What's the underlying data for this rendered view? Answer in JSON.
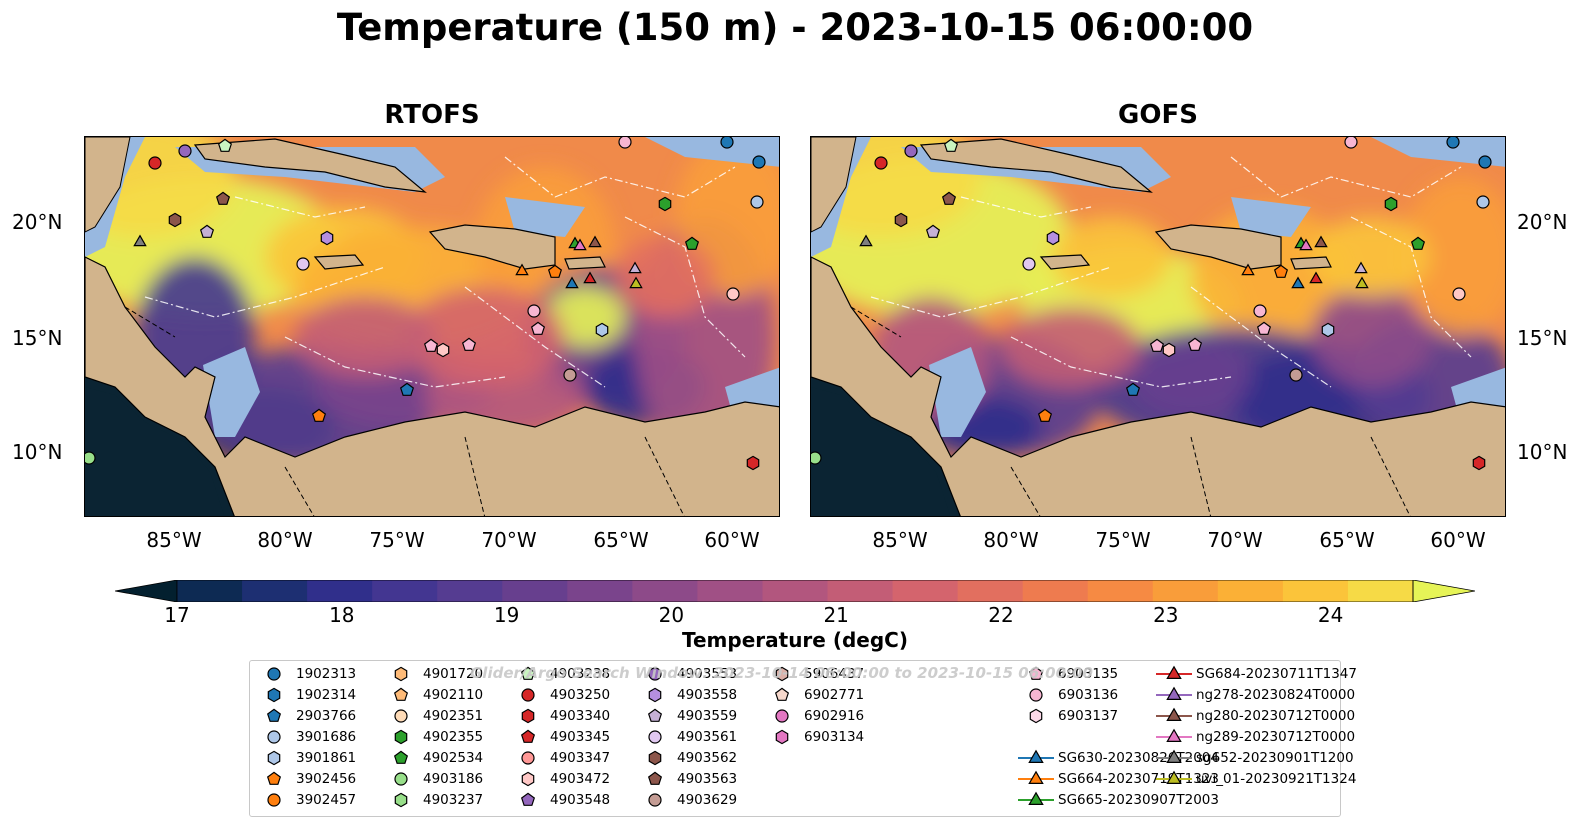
{
  "title": "Temperature (150 m) - 2023-10-15 06:00:00",
  "panels": [
    {
      "title": "RTOFS",
      "variant": "rtofs"
    },
    {
      "title": "GOFS",
      "variant": "gofs"
    }
  ],
  "lat_ticks": [
    "20°N",
    "15°N",
    "10°N"
  ],
  "lon_ticks": [
    "85°W",
    "80°W",
    "75°W",
    "70°W",
    "65°W",
    "60°W"
  ],
  "colorbar": {
    "label": "Temperature (degC)",
    "min": 17,
    "max": 24.5,
    "step": 0.5,
    "tick_labels": [
      "17",
      "18",
      "19",
      "20",
      "21",
      "22",
      "23",
      "24"
    ],
    "colors": [
      "#03202f",
      "#0d2a53",
      "#1d2f72",
      "#302f8b",
      "#433691",
      "#553c91",
      "#673f8e",
      "#7a448c",
      "#8d4a89",
      "#a05085",
      "#b2567e",
      "#c35d76",
      "#d4646d",
      "#e26f5f",
      "#ee7b4f",
      "#f68a43",
      "#f99d3a",
      "#fbb036",
      "#fbc43a",
      "#f6da46",
      "#e6f457"
    ]
  },
  "watermark": "Glider/Argo Search Window: 2023-10-14 06:00:00 to 2023-10-15 06:00:00",
  "legend": [
    {
      "label": "1902313",
      "shape": "circle",
      "color": "#1f77b4"
    },
    {
      "label": "1902314",
      "shape": "hexagon",
      "color": "#1f77b4"
    },
    {
      "label": "2903766",
      "shape": "pentagon",
      "color": "#1f77b4"
    },
    {
      "label": "3901686",
      "shape": "circle",
      "color": "#aec7e8"
    },
    {
      "label": "3901861",
      "shape": "hexagon",
      "color": "#aec7e8"
    },
    {
      "label": "3902456",
      "shape": "pentagon",
      "color": "#ff7f0e"
    },
    {
      "label": "3902457",
      "shape": "circle",
      "color": "#ff7f0e"
    },
    {
      "label": "4901720",
      "shape": "hexagon",
      "color": "#ffbb78"
    },
    {
      "label": "4902110",
      "shape": "pentagon",
      "color": "#ffbb78"
    },
    {
      "label": "4902351",
      "shape": "circle",
      "color": "#ffdcb8"
    },
    {
      "label": "4902355",
      "shape": "hexagon",
      "color": "#2ca02c"
    },
    {
      "label": "4902534",
      "shape": "pentagon",
      "color": "#2ca02c"
    },
    {
      "label": "4903186",
      "shape": "circle",
      "color": "#98df8a"
    },
    {
      "label": "4903237",
      "shape": "hexagon",
      "color": "#98df8a"
    },
    {
      "label": "4903238",
      "shape": "pentagon",
      "color": "#c9f5c0"
    },
    {
      "label": "4903250",
      "shape": "circle",
      "color": "#d62728"
    },
    {
      "label": "4903340",
      "shape": "hexagon",
      "color": "#d62728"
    },
    {
      "label": "4903345",
      "shape": "pentagon",
      "color": "#d62728"
    },
    {
      "label": "4903347",
      "shape": "circle",
      "color": "#ff9896"
    },
    {
      "label": "4903472",
      "shape": "hexagon",
      "color": "#ffc8c6"
    },
    {
      "label": "4903548",
      "shape": "pentagon",
      "color": "#9467bd"
    },
    {
      "label": "4903553",
      "shape": "circle",
      "color": "#9467bd"
    },
    {
      "label": "4903558",
      "shape": "hexagon",
      "color": "#b58fe0"
    },
    {
      "label": "4903559",
      "shape": "pentagon",
      "color": "#c5b0d5"
    },
    {
      "label": "4903561",
      "shape": "circle",
      "color": "#e0c8f0"
    },
    {
      "label": "4903562",
      "shape": "hexagon",
      "color": "#8c564b"
    },
    {
      "label": "4903563",
      "shape": "pentagon",
      "color": "#8c564b"
    },
    {
      "label": "4903629",
      "shape": "circle",
      "color": "#c49c94"
    },
    {
      "label": "5906437",
      "shape": "hexagon",
      "color": "#dbb0a8"
    },
    {
      "label": "6902771",
      "shape": "pentagon",
      "color": "#f7d8cc"
    },
    {
      "label": "6902916",
      "shape": "circle",
      "color": "#e377c2"
    },
    {
      "label": "6903134",
      "shape": "hexagon",
      "color": "#e377c2"
    },
    {
      "label": "6903135",
      "shape": "pentagon",
      "color": "#f7b6d2"
    },
    {
      "label": "6903136",
      "shape": "circle",
      "color": "#f7b6d2"
    },
    {
      "label": "6903137",
      "shape": "hexagon",
      "color": "#fcd8e8"
    },
    {
      "label": "SG630-20230826T2004",
      "shape": "triangle",
      "color": "#1f77b4"
    },
    {
      "label": "SG664-20230719T1323",
      "shape": "triangle",
      "color": "#ff7f0e"
    },
    {
      "label": "SG665-20230907T2003",
      "shape": "triangle",
      "color": "#2ca02c"
    },
    {
      "label": "SG684-20230711T1347",
      "shape": "triangle",
      "color": "#d62728"
    },
    {
      "label": "ng278-20230824T0000",
      "shape": "triangle",
      "color": "#9467bd"
    },
    {
      "label": "ng280-20230712T0000",
      "shape": "triangle",
      "color": "#8c564b"
    },
    {
      "label": "ng289-20230712T0000",
      "shape": "triangle",
      "color": "#e377c2"
    },
    {
      "label": "sg652-20230901T1200",
      "shape": "triangle",
      "color": "#7f7f7f"
    },
    {
      "label": "uvi_01-20230921T1324",
      "shape": "triangle",
      "color": "#bcbd22"
    }
  ]
}
